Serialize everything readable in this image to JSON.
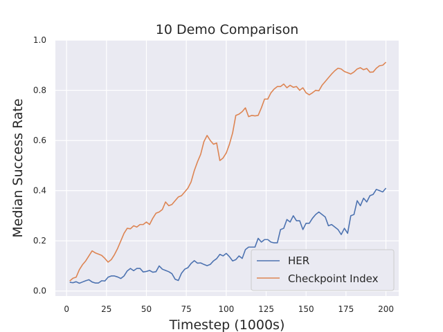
{
  "chart_data": {
    "type": "line",
    "title": "10 Demo Comparison",
    "xlabel": "Timestep (1000s)",
    "ylabel": "Median Success Rate",
    "xlim": [
      -7,
      208
    ],
    "ylim": [
      -0.02,
      1.0
    ],
    "xticks": [
      0,
      25,
      50,
      75,
      100,
      125,
      150,
      175,
      200
    ],
    "yticks": [
      0.0,
      0.2,
      0.4,
      0.6,
      0.8,
      1.0
    ],
    "grid": true,
    "legend_position": "lower-right",
    "series": [
      {
        "name": "HER",
        "color": "#4c72b0",
        "x": [
          2,
          4,
          6,
          8,
          10,
          12,
          14,
          16,
          18,
          20,
          22,
          24,
          26,
          28,
          30,
          32,
          34,
          36,
          38,
          40,
          42,
          44,
          46,
          48,
          50,
          52,
          54,
          56,
          58,
          60,
          62,
          64,
          66,
          68,
          70,
          72,
          74,
          76,
          78,
          80,
          82,
          84,
          86,
          88,
          90,
          92,
          94,
          96,
          98,
          100,
          102,
          104,
          106,
          108,
          110,
          112,
          114,
          116,
          118,
          120,
          122,
          124,
          126,
          128,
          130,
          132,
          134,
          136,
          138,
          140,
          142,
          144,
          146,
          148,
          150,
          152,
          154,
          156,
          158,
          160,
          162,
          164,
          166,
          168,
          170,
          172,
          174,
          176,
          178,
          180,
          182,
          184,
          186,
          188,
          190,
          192,
          194,
          196,
          198,
          200
        ],
        "y": [
          0.035,
          0.033,
          0.037,
          0.031,
          0.036,
          0.041,
          0.045,
          0.036,
          0.032,
          0.032,
          0.041,
          0.04,
          0.055,
          0.06,
          0.06,
          0.056,
          0.05,
          0.06,
          0.08,
          0.09,
          0.081,
          0.09,
          0.09,
          0.076,
          0.078,
          0.082,
          0.075,
          0.077,
          0.1,
          0.087,
          0.082,
          0.077,
          0.069,
          0.047,
          0.042,
          0.071,
          0.087,
          0.093,
          0.11,
          0.121,
          0.111,
          0.112,
          0.106,
          0.101,
          0.106,
          0.12,
          0.129,
          0.146,
          0.14,
          0.15,
          0.137,
          0.12,
          0.125,
          0.14,
          0.13,
          0.165,
          0.175,
          0.175,
          0.175,
          0.21,
          0.195,
          0.205,
          0.205,
          0.195,
          0.192,
          0.192,
          0.245,
          0.25,
          0.285,
          0.275,
          0.3,
          0.28,
          0.28,
          0.245,
          0.27,
          0.27,
          0.29,
          0.305,
          0.315,
          0.305,
          0.295,
          0.26,
          0.265,
          0.255,
          0.245,
          0.225,
          0.25,
          0.23,
          0.3,
          0.305,
          0.36,
          0.34,
          0.37,
          0.355,
          0.38,
          0.385,
          0.405,
          0.4,
          0.395,
          0.41
        ]
      },
      {
        "name": "Checkpoint Index",
        "color": "#dd8452",
        "x": [
          2,
          4,
          6,
          8,
          10,
          12,
          14,
          16,
          18,
          20,
          22,
          24,
          26,
          28,
          30,
          32,
          34,
          36,
          38,
          40,
          42,
          44,
          46,
          48,
          50,
          52,
          54,
          56,
          58,
          60,
          62,
          64,
          66,
          68,
          70,
          72,
          74,
          76,
          78,
          80,
          82,
          84,
          86,
          88,
          90,
          92,
          94,
          96,
          98,
          100,
          102,
          104,
          106,
          108,
          110,
          112,
          114,
          116,
          118,
          120,
          122,
          124,
          126,
          128,
          130,
          132,
          134,
          136,
          138,
          140,
          142,
          144,
          146,
          148,
          150,
          152,
          154,
          156,
          158,
          160,
          162,
          164,
          166,
          168,
          170,
          172,
          174,
          176,
          178,
          180,
          182,
          184,
          186,
          188,
          190,
          192,
          194,
          196,
          198,
          200
        ],
        "y": [
          0.04,
          0.051,
          0.055,
          0.085,
          0.105,
          0.12,
          0.14,
          0.16,
          0.152,
          0.147,
          0.142,
          0.13,
          0.115,
          0.125,
          0.145,
          0.17,
          0.2,
          0.23,
          0.25,
          0.248,
          0.26,
          0.255,
          0.265,
          0.265,
          0.275,
          0.265,
          0.29,
          0.31,
          0.315,
          0.325,
          0.355,
          0.34,
          0.345,
          0.36,
          0.375,
          0.38,
          0.395,
          0.41,
          0.435,
          0.48,
          0.515,
          0.545,
          0.595,
          0.62,
          0.6,
          0.585,
          0.59,
          0.52,
          0.53,
          0.55,
          0.585,
          0.63,
          0.7,
          0.705,
          0.715,
          0.73,
          0.695,
          0.7,
          0.698,
          0.7,
          0.73,
          0.765,
          0.765,
          0.79,
          0.805,
          0.815,
          0.815,
          0.825,
          0.81,
          0.82,
          0.812,
          0.815,
          0.8,
          0.81,
          0.79,
          0.782,
          0.79,
          0.8,
          0.798,
          0.82,
          0.835,
          0.85,
          0.865,
          0.878,
          0.888,
          0.885,
          0.875,
          0.87,
          0.865,
          0.873,
          0.885,
          0.89,
          0.882,
          0.887,
          0.872,
          0.873,
          0.888,
          0.898,
          0.9,
          0.912
        ]
      }
    ]
  }
}
